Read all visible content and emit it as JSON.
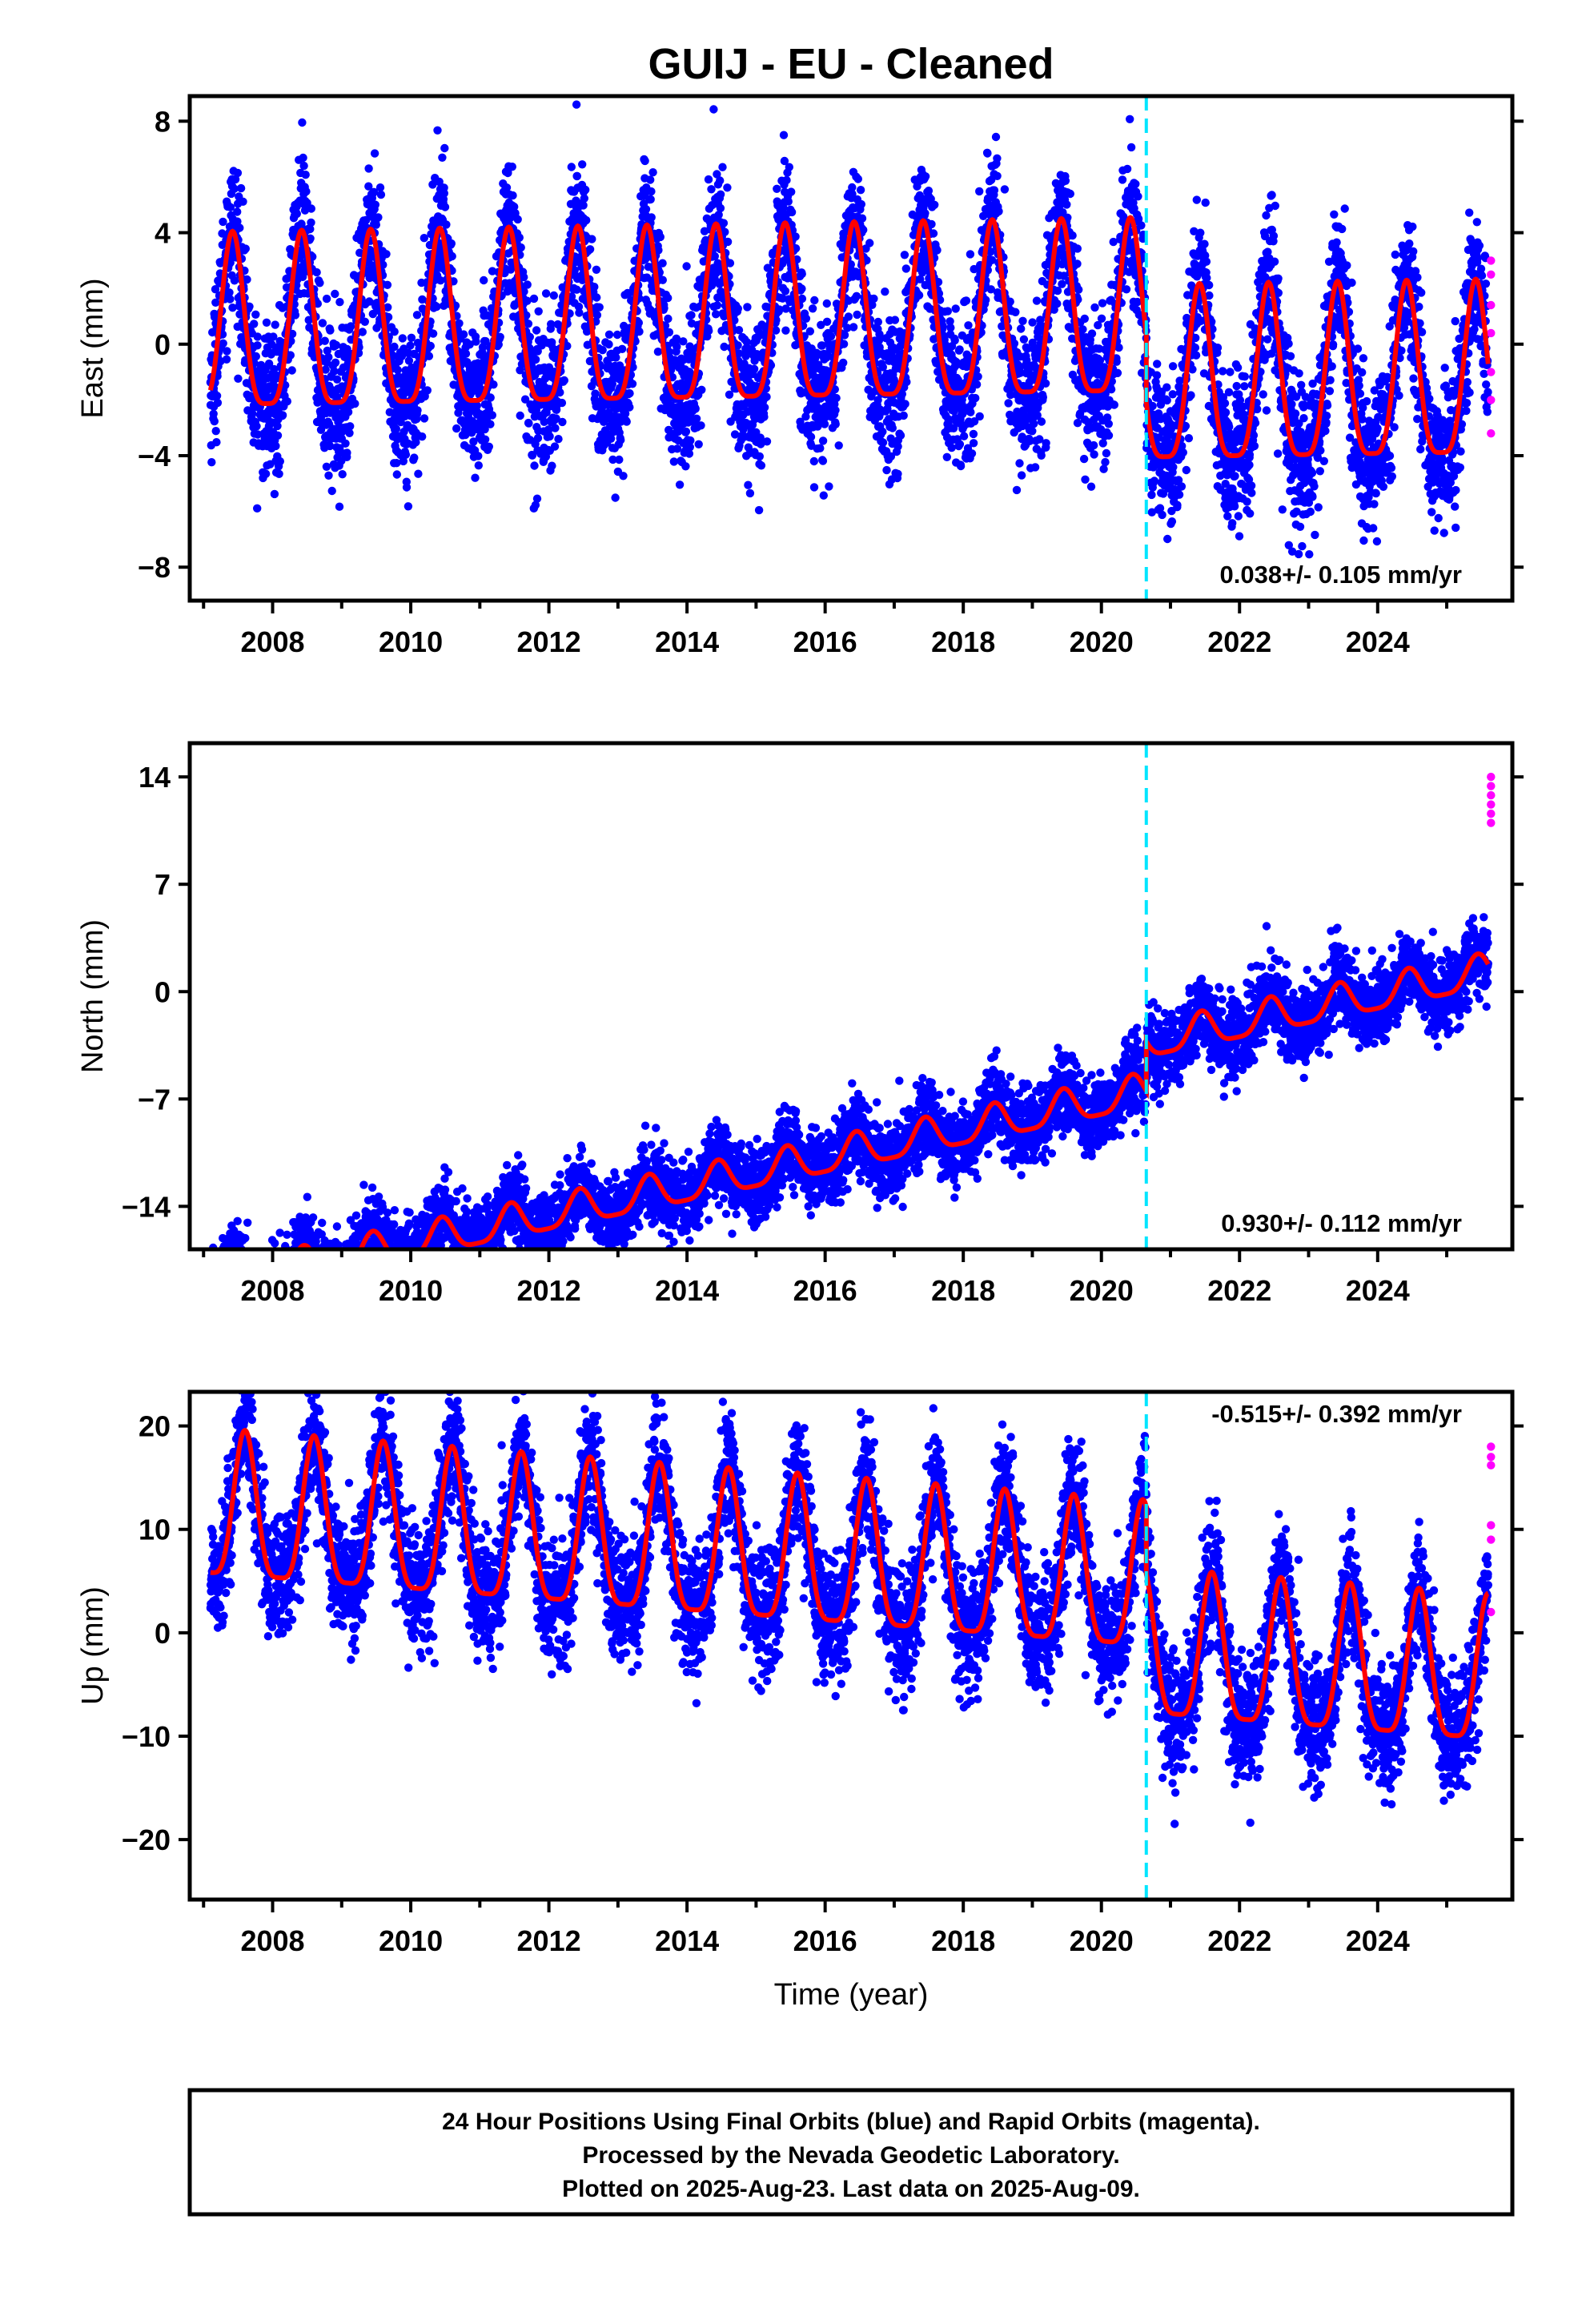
{
  "title": "GUIJ  - EU - Cleaned",
  "colors": {
    "final_orbits": "#0000ff",
    "rapid_orbits": "#ff00ff",
    "model": "#ff0000",
    "step_line": "#00e5ff",
    "axis": "#000000"
  },
  "xlabel": "Time (year)",
  "xlim": [
    2006.8,
    2025.95
  ],
  "x_ticks": [
    "2008",
    "2010",
    "2012",
    "2014",
    "2016",
    "2018",
    "2020",
    "2022",
    "2024"
  ],
  "step_epoch": 2020.65,
  "footer": {
    "line1": "24 Hour Positions Using Final Orbits (blue) and Rapid Orbits (magenta).",
    "line2": "Processed by the Nevada Geodetic Laboratory.",
    "line3": "Plotted on 2025-Aug-23. Last data on 2025-Aug-09."
  },
  "chart_data": [
    {
      "type": "scatter",
      "component": "East",
      "ylabel": "East (mm)",
      "ylim": [
        -9.2,
        8.9
      ],
      "y_ticks": [
        "8",
        "4",
        "0",
        "-4",
        "-8"
      ],
      "rate_text": "0.038+/- 0.105 mm/yr",
      "rate_position": "bottom-right",
      "data_start": 2007.1,
      "data_end": 2025.6,
      "trend_mm_per_yr": 0.038,
      "offset_before": 0.5,
      "offset_after": -1.9,
      "annual_amplitude": 3.1,
      "annual_peak_fraction": 0.42,
      "scatter_mm": 1.3,
      "rapid_values": [
        3.0,
        2.5,
        1.4,
        0.4,
        -1.0,
        -2.0,
        -3.2
      ]
    },
    {
      "type": "scatter",
      "component": "North",
      "ylabel": "North (mm)",
      "ylim": [
        -16.8,
        16.2
      ],
      "y_ticks": [
        "14",
        "7",
        "0",
        "-7",
        "-14"
      ],
      "rate_text": "0.930+/- 0.112 mm/yr",
      "rate_position": "bottom-right",
      "data_start": 2007.1,
      "data_end": 2025.6,
      "trend_mm_per_yr": 0.93,
      "offset_before": -10.9,
      "offset_after": -7.7,
      "annual_amplitude": 1.1,
      "annual_peak_fraction": 0.45,
      "scatter_mm": 1.2,
      "rapid_values": [
        14.0,
        13.4,
        12.8,
        12.2,
        11.6,
        11.0
      ]
    },
    {
      "type": "scatter",
      "component": "Up",
      "ylabel": "Up (mm)",
      "ylim": [
        -25.8,
        23.3
      ],
      "y_ticks": [
        "20",
        "10",
        "0",
        "-10",
        "-20"
      ],
      "rate_text": "-0.515+/- 0.392 mm/yr",
      "rate_position": "top-right",
      "data_start": 2007.1,
      "data_end": 2025.6,
      "trend_mm_per_yr": -0.515,
      "offset_before": 6.5,
      "offset_after": 0.0,
      "annual_amplitude": 7.0,
      "annual_peak_fraction": 0.6,
      "scatter_mm": 3.0,
      "rapid_values": [
        18.0,
        17.0,
        16.2,
        10.4,
        9.0,
        2.0
      ]
    }
  ]
}
